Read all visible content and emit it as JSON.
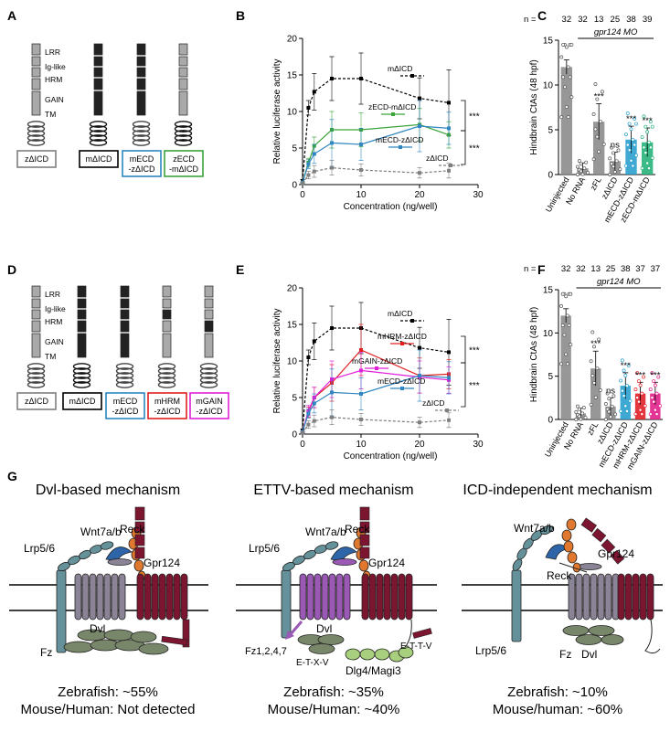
{
  "colors": {
    "black": "#000000",
    "gray": "#7f7f7f",
    "light_gray": "#a9a9a9",
    "blue": "#2f86c0",
    "green": "#3aa33a",
    "red": "#e02020",
    "magenta": "#e01fd9",
    "bar_blue": "#2aa0cf",
    "bar_green": "#27b27a",
    "bar_red": "#e02028",
    "bar_magenta": "#e0208a",
    "fz_gray": "#8a8496",
    "fz_purple": "#9a59b4",
    "gpr_maroon": "#7b1530",
    "lrp_teal": "#64919a",
    "wnt_orange": "#e0782f",
    "reck_blue": "#2e64a8",
    "dvl_olive": "#78866a",
    "dlg_green": "#a8cf7d"
  },
  "panel_letters": {
    "A": "A",
    "B": "B",
    "C": "C",
    "D": "D",
    "E": "E",
    "F": "F",
    "G": "G"
  },
  "panel_a": {
    "domain_labels": [
      "LRR",
      "Ig-like",
      "HRM",
      "GAIN",
      "TM"
    ],
    "constructs": [
      "zΔICD",
      "mΔICD",
      "mECD\n-zΔICD",
      "zECD\n-mΔICD"
    ]
  },
  "panel_d": {
    "domain_labels": [
      "LRR",
      "Ig-like",
      "HRM",
      "GAIN",
      "TM"
    ],
    "constructs": [
      "zΔICD",
      "mΔICD",
      "mECD\n-zΔICD",
      "mHRM\n-zΔICD",
      "mGAIN\n-zΔICD"
    ]
  },
  "panel_g": {
    "label": "G",
    "mechanisms": [
      {
        "title": "Dvl-based mechanism",
        "labels": [
          "Reck",
          "Wnt7a/b",
          "Lrp5/6",
          "Gpr124",
          "Fz",
          "Dvl"
        ],
        "zebrafish": "Zebrafish: ~55%",
        "mammal": "Mouse/Human: Not detected"
      },
      {
        "title": "ETTV-based mechanism",
        "labels": [
          "Reck",
          "Wnt7a/b",
          "Lrp5/6",
          "Gpr124",
          "Dvl",
          "Fz1,2,4,7",
          "E-T-X-V",
          "E-T-T-V",
          "Dlg4/Magi3"
        ],
        "zebrafish": "Zebrafish: ~35%",
        "mammal": "Mouse/Human: ~40%"
      },
      {
        "title": "ICD-independent mechanism",
        "labels": [
          "Wnt7a/b",
          "Gpr124",
          "Reck",
          "Lrp5/6",
          "Fz",
          "Dvl"
        ],
        "zebrafish": "Zebrafish: ~10%",
        "mammal": "Mouse/human: ~60%"
      }
    ]
  },
  "chart_data": [
    {
      "panel": "B",
      "type": "line",
      "xlabel": "Concentration (ng/well)",
      "ylabel": "Relative luciferase activity",
      "xlim": [
        0,
        30
      ],
      "ylim": [
        0,
        20
      ],
      "xticks": [
        0,
        10,
        20,
        30
      ],
      "yticks": [
        0,
        5,
        10,
        15,
        20
      ],
      "grid": false,
      "significance": [
        "***",
        "***"
      ],
      "series": [
        {
          "name": "mΔICD",
          "style": "dashed",
          "color": "#000000",
          "x": [
            0,
            1,
            2,
            5,
            10,
            20,
            25
          ],
          "y": [
            0.5,
            10.5,
            12.7,
            14.5,
            14.5,
            11.8,
            11.2
          ],
          "err": [
            0.2,
            1.0,
            2.5,
            3.0,
            3.5,
            2.8,
            4.5
          ]
        },
        {
          "name": "zECD-mΔICD",
          "style": "solid",
          "color": "#3aa33a",
          "x": [
            0,
            1,
            2,
            5,
            10,
            20,
            25
          ],
          "y": [
            0.3,
            3.0,
            5.3,
            7.5,
            7.5,
            8.2,
            6.8
          ],
          "err": [
            0.1,
            0.6,
            1.2,
            2.5,
            2.3,
            2.2,
            1.8
          ]
        },
        {
          "name": "mECD-zΔICD",
          "style": "solid",
          "color": "#2f86c0",
          "x": [
            0,
            1,
            2,
            5,
            10,
            20,
            25
          ],
          "y": [
            0.3,
            2.8,
            4.2,
            5.7,
            5.5,
            8.0,
            7.7
          ],
          "err": [
            0.1,
            0.6,
            1.3,
            3.2,
            2.2,
            3.5,
            2.2
          ]
        },
        {
          "name": "zΔICD",
          "style": "dashed",
          "color": "#7f7f7f",
          "x": [
            0,
            1,
            2,
            5,
            10,
            20,
            25
          ],
          "y": [
            0.2,
            1.3,
            1.8,
            2.3,
            2.0,
            1.6,
            1.9
          ],
          "err": [
            0.1,
            0.5,
            0.8,
            1.0,
            0.8,
            0.7,
            1.0
          ]
        }
      ]
    },
    {
      "panel": "C",
      "type": "bar",
      "title": "gpr124 MO",
      "ylabel": "Hindbrain CtAs (48 hpf)",
      "ylim": [
        0,
        15
      ],
      "yticks": [
        0,
        5,
        10,
        15
      ],
      "n_label": "n =",
      "categories": [
        "Uninjected",
        "No RNA",
        "zFL",
        "zΔICD",
        "mECD-zΔICD",
        "zECD-mΔICD"
      ],
      "n": [
        "32",
        "32",
        "13",
        "25",
        "38",
        "39"
      ],
      "values": [
        12.0,
        0.7,
        5.9,
        1.5,
        3.9,
        3.6
      ],
      "err": [
        0.8,
        0.6,
        2.0,
        1.0,
        1.5,
        1.6
      ],
      "significance": [
        "",
        "",
        "***",
        "ns",
        "***",
        "***"
      ],
      "bar_colors": [
        "#8c8c8c",
        "#8c8c8c",
        "#8c8c8c",
        "#8c8c8c",
        "#2aa0cf",
        "#27b27a"
      ]
    },
    {
      "panel": "E",
      "type": "line",
      "xlabel": "Concentration (ng/well)",
      "ylabel": "Relative luciferase activity",
      "xlim": [
        0,
        30
      ],
      "ylim": [
        0,
        20
      ],
      "xticks": [
        0,
        10,
        20,
        30
      ],
      "yticks": [
        0,
        5,
        10,
        15,
        20
      ],
      "grid": false,
      "significance": [
        "***",
        "***"
      ],
      "series": [
        {
          "name": "mΔICD",
          "style": "dashed",
          "color": "#000000",
          "x": [
            0,
            1,
            2,
            5,
            10,
            20,
            25
          ],
          "y": [
            0.5,
            10.5,
            12.7,
            14.5,
            14.5,
            11.8,
            11.2
          ],
          "err": [
            0.2,
            1.0,
            2.5,
            3.0,
            3.5,
            2.8,
            4.5
          ]
        },
        {
          "name": "mHRM-zΔICD",
          "style": "solid",
          "color": "#e02020",
          "x": [
            0,
            1,
            2,
            5,
            10,
            20,
            25
          ],
          "y": [
            0.3,
            3.0,
            5.0,
            7.0,
            11.5,
            8.0,
            8.2
          ],
          "err": [
            0.1,
            0.7,
            1.4,
            2.5,
            3.5,
            2.4,
            2.0
          ]
        },
        {
          "name": "mGAIN-zΔICD",
          "style": "solid",
          "color": "#e01fd9",
          "x": [
            0,
            1,
            2,
            5,
            10,
            20,
            25
          ],
          "y": [
            0.3,
            3.2,
            5.0,
            7.5,
            8.7,
            7.8,
            7.4
          ],
          "err": [
            0.1,
            0.7,
            1.4,
            2.5,
            2.5,
            2.2,
            1.8
          ]
        },
        {
          "name": "mECD-zΔICD",
          "style": "solid",
          "color": "#2f86c0",
          "x": [
            0,
            1,
            2,
            5,
            10,
            20,
            25
          ],
          "y": [
            0.3,
            2.8,
            4.2,
            5.7,
            5.5,
            8.0,
            7.7
          ],
          "err": [
            0.1,
            0.6,
            1.3,
            3.2,
            2.2,
            3.5,
            2.2
          ]
        },
        {
          "name": "zΔICD",
          "style": "dashed",
          "color": "#7f7f7f",
          "x": [
            0,
            1,
            2,
            5,
            10,
            20,
            25
          ],
          "y": [
            0.2,
            1.3,
            1.8,
            2.3,
            2.0,
            1.6,
            1.9
          ],
          "err": [
            0.1,
            0.5,
            0.8,
            1.0,
            0.8,
            0.7,
            1.0
          ]
        }
      ]
    },
    {
      "panel": "F",
      "type": "bar",
      "title": "gpr124 MO",
      "ylabel": "Hindbrain CtAs (48 hpf)",
      "ylim": [
        0,
        15
      ],
      "yticks": [
        0,
        5,
        10,
        15
      ],
      "n_label": "n =",
      "categories": [
        "Uninjected",
        "No RNA",
        "zFL",
        "zΔICD",
        "mECD-zΔICD",
        "mHRM-zΔICD",
        "mGAIN-zΔICD"
      ],
      "n": [
        "32",
        "32",
        "13",
        "25",
        "38",
        "37",
        "37"
      ],
      "values": [
        12.0,
        0.7,
        5.9,
        1.5,
        3.9,
        3.0,
        3.0
      ],
      "err": [
        0.8,
        0.6,
        2.0,
        1.0,
        1.5,
        1.3,
        1.3
      ],
      "significance": [
        "",
        "",
        "***",
        "ns",
        "***",
        "***",
        "***"
      ],
      "bar_colors": [
        "#8c8c8c",
        "#8c8c8c",
        "#8c8c8c",
        "#8c8c8c",
        "#2aa0cf",
        "#e02028",
        "#e0208a"
      ]
    }
  ]
}
